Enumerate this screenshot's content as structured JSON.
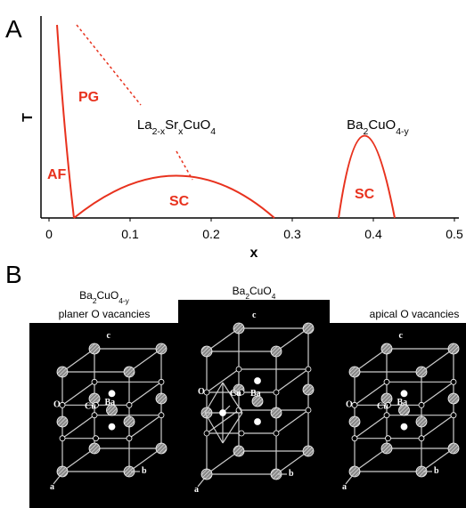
{
  "figure": {
    "panel_a_label": "A",
    "panel_b_label": "B"
  },
  "chart_data": {
    "type": "line",
    "xlabel": "x",
    "ylabel": "T",
    "xlim": [
      0,
      0.5
    ],
    "xticks": [
      0,
      0.1,
      0.2,
      0.3,
      0.4,
      0.5
    ],
    "annotations": [
      "AF",
      "PG",
      "SC",
      "SC"
    ],
    "compounds": [
      [
        "La",
        "2-x",
        "Sr",
        "x",
        "CuO",
        "4"
      ],
      [
        "Ba",
        "2",
        "CuO",
        "4-y"
      ]
    ]
  },
  "panel_b": {
    "captions": [
      {
        "formula": [
          "Ba",
          "2",
          "CuO",
          "4-y"
        ],
        "text": "planer O vacancies"
      },
      {
        "formula": [
          "Ba",
          "2",
          "CuO",
          "4"
        ]
      },
      {
        "text": "apical O vacancies"
      }
    ],
    "structures": [
      {
        "labels": [
          "c",
          "Ba",
          "O",
          "Cu",
          "a",
          "b"
        ]
      },
      {
        "labels": [
          "c",
          "Ba",
          "O",
          "Cu",
          "a",
          "b"
        ]
      },
      {
        "labels": [
          "c",
          "Ba",
          "O",
          "Cu",
          "a",
          "b"
        ]
      }
    ]
  }
}
